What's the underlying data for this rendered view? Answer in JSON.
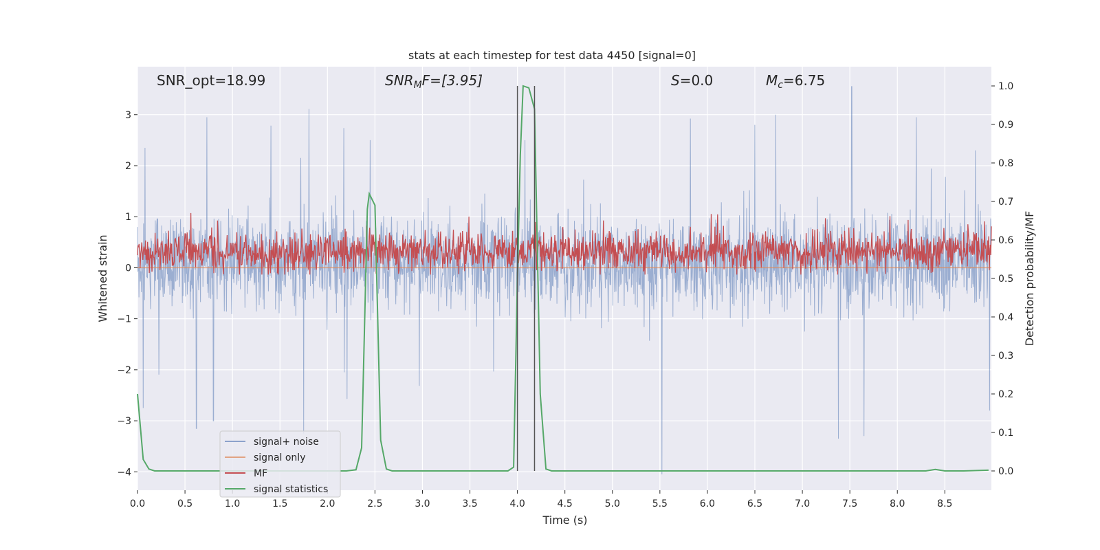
{
  "chart_data": {
    "type": "line",
    "title": "stats at each timestep for test data 4450 [signal=0]",
    "xlabel": "Time (s)",
    "ylabel": "Whitened strain",
    "ylabel_right": "Detection probability/MF",
    "xlim": [
      0.0,
      8.99
    ],
    "ylim": [
      -4.36,
      3.94
    ],
    "ylim_right": [
      -0.05,
      1.05
    ],
    "x_ticks": [
      0.0,
      0.5,
      1.0,
      1.5,
      2.0,
      2.5,
      3.0,
      3.5,
      4.0,
      4.5,
      5.0,
      5.5,
      6.0,
      6.5,
      7.0,
      7.5,
      8.0,
      8.5
    ],
    "x_tick_labels": [
      "0.0",
      "0.5",
      "1.0",
      "1.5",
      "2.0",
      "2.5",
      "3.0",
      "3.5",
      "4.0",
      "4.5",
      "5.0",
      "5.5",
      "6.0",
      "6.5",
      "7.0",
      "7.5",
      "8.0",
      "8.5"
    ],
    "y_ticks": [
      3,
      2,
      1,
      0,
      -1,
      -2,
      -3,
      -4
    ],
    "y_tick_labels": [
      "3",
      "2",
      "1",
      "0",
      "−1",
      "−2",
      "−3",
      "−4"
    ],
    "y_right_ticks": [
      1.0,
      0.9,
      0.8,
      0.7,
      0.6,
      0.5,
      0.4,
      0.3,
      0.2,
      0.1,
      0.0
    ],
    "y_right_tick_labels": [
      "1.0",
      "0.9",
      "0.8",
      "0.7",
      "0.6",
      "0.5",
      "0.4",
      "0.3",
      "0.2",
      "0.1",
      "0.0"
    ],
    "grid": true,
    "legend_position": "bottom-left",
    "annotations": {
      "snr_opt": "SNR_opt=18.99",
      "snr_mf_sym": "SNR",
      "snr_mf_sub": "M",
      "snr_mf_rest": "F=[3.95]",
      "s_stat_sym": "S",
      "s_stat_rest": "=0.0",
      "mc_sym": "M",
      "mc_sub": "c",
      "mc_rest": "=6.75"
    },
    "vertical_markers": [
      4.0,
      4.18
    ],
    "series": [
      {
        "name": "signal+ noise",
        "color": "#4c72b0",
        "axis": "left",
        "kind": "noise",
        "sample_rate_hz": 1024,
        "typical_range": [
          -1.0,
          1.3
        ],
        "peaks": [
          [
            0.08,
            2.35
          ],
          [
            0.73,
            2.95
          ],
          [
            1.72,
            2.15
          ],
          [
            2.45,
            2.5
          ],
          [
            4.08,
            2.5
          ],
          [
            6.5,
            2.8
          ],
          [
            6.72,
            3.0
          ],
          [
            7.52,
            3.55
          ],
          [
            8.2,
            2.95
          ],
          [
            8.82,
            2.3
          ]
        ],
        "troughs": [
          [
            0.06,
            -2.75
          ],
          [
            0.62,
            -3.15
          ],
          [
            0.8,
            -3.0
          ],
          [
            1.75,
            -3.25
          ],
          [
            5.52,
            -4.05
          ],
          [
            7.38,
            -3.35
          ],
          [
            7.65,
            -3.3
          ],
          [
            8.97,
            -2.8
          ]
        ]
      },
      {
        "name": "signal only",
        "color": "#dd8452",
        "axis": "left",
        "kind": "flat",
        "value": 0.0
      },
      {
        "name": "MF",
        "color": "#c44e52",
        "axis": "right",
        "kind": "noise",
        "typical_range": [
          0.53,
          0.61
        ],
        "extremes": [
          0.51,
          0.67
        ]
      },
      {
        "name": "signal statistics",
        "color": "#55a868",
        "axis": "right",
        "kind": "line",
        "x": [
          0.0,
          0.06,
          0.12,
          0.18,
          0.25,
          0.5,
          1.0,
          1.5,
          2.0,
          2.2,
          2.3,
          2.36,
          2.42,
          2.44,
          2.5,
          2.56,
          2.62,
          2.68,
          2.8,
          3.0,
          3.5,
          3.9,
          3.96,
          4.0,
          4.03,
          4.06,
          4.12,
          4.18,
          4.24,
          4.3,
          4.36,
          4.45,
          5.0,
          6.0,
          7.0,
          8.0,
          8.3,
          8.4,
          8.5,
          8.7,
          8.96
        ],
        "y": [
          0.2,
          0.03,
          0.005,
          0.0,
          0.0,
          0.0,
          0.0,
          0.0,
          0.0,
          0.0,
          0.003,
          0.06,
          0.68,
          0.72,
          0.69,
          0.08,
          0.005,
          0.0,
          0.0,
          0.0,
          0.0,
          0.0,
          0.01,
          0.5,
          0.82,
          1.0,
          0.995,
          0.94,
          0.2,
          0.005,
          0.0,
          0.0,
          0.0,
          0.0,
          0.0,
          0.0,
          0.0,
          0.004,
          0.0,
          0.0,
          0.002
        ]
      }
    ]
  }
}
